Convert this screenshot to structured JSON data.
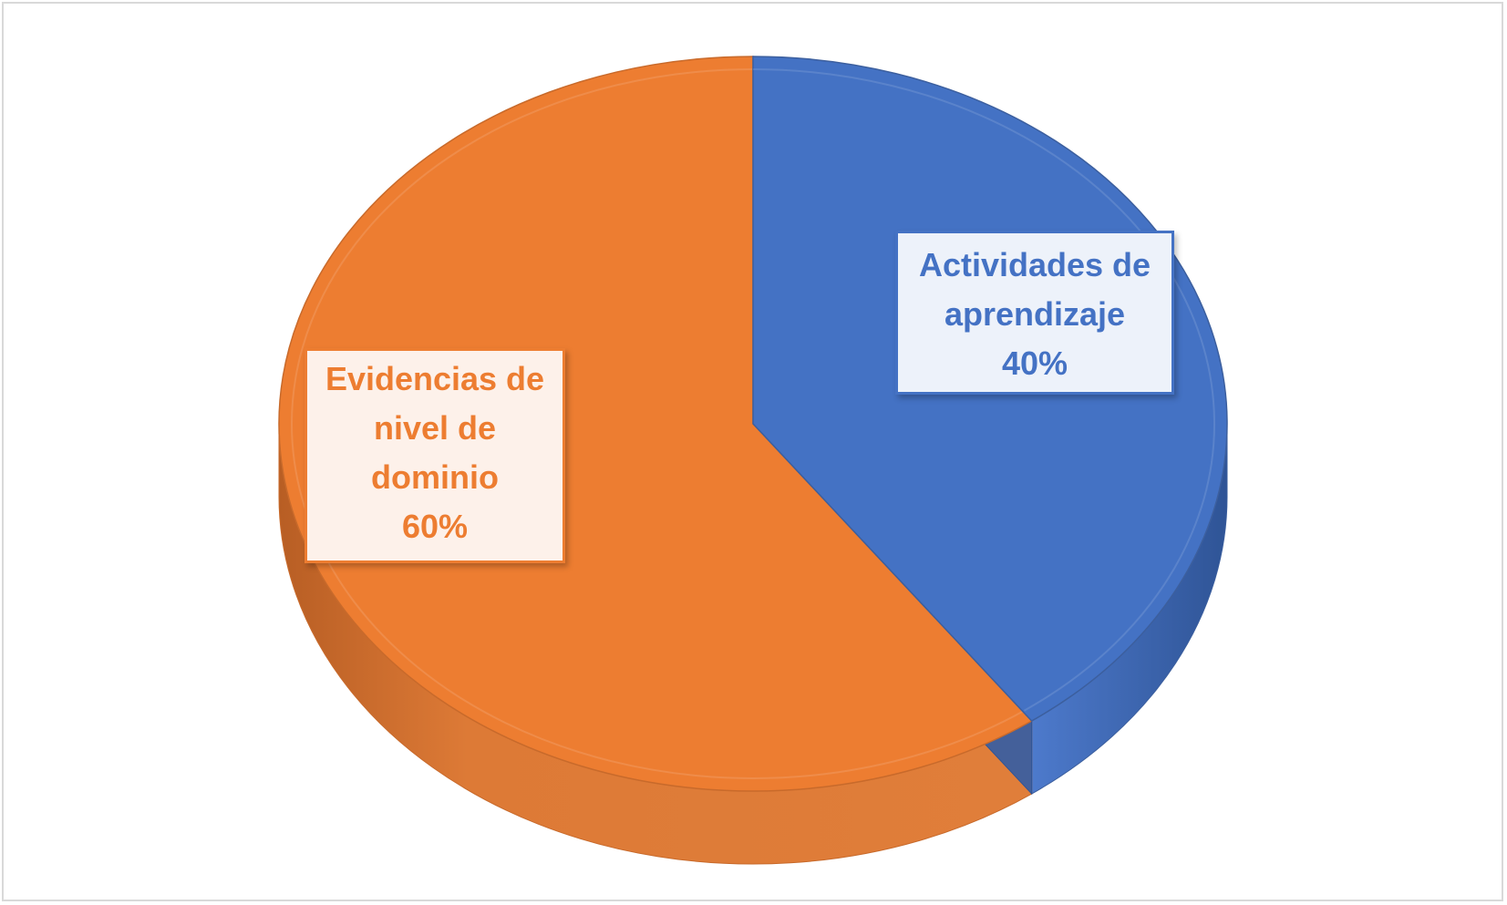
{
  "chart_data": {
    "type": "pie",
    "style": "3d",
    "title": "",
    "legend": "none",
    "slices": [
      {
        "label": "Actividades de aprendizaje",
        "label_lines": [
          "Actividades de",
          "aprendizaje"
        ],
        "value": 40,
        "value_text": "40%",
        "color": "#4472c4",
        "side_color": "#3c5f9e"
      },
      {
        "label": "Evidencias de nivel de dominio",
        "label_lines": [
          "Evidencias de",
          "nivel de",
          "dominio"
        ],
        "value": 60,
        "value_text": "60%",
        "color": "#ed7d31",
        "side_color": "#c86a2b"
      }
    ],
    "start_angle_deg": 0,
    "direction": "clockwise"
  }
}
